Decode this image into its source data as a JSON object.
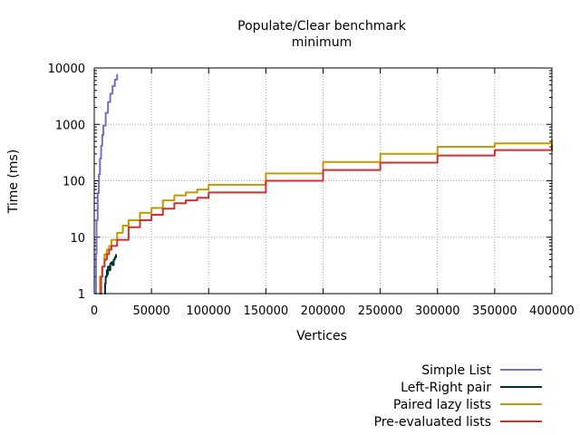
{
  "chart_data": {
    "type": "line",
    "title": "Populate/Clear benchmark",
    "subtitle": "minimum",
    "xlabel": "Vertices",
    "ylabel": "Time (ms)",
    "xlim": [
      0,
      400000
    ],
    "ylim": [
      1,
      10000
    ],
    "y_scale": "log",
    "grid": true,
    "legend_position": "bottom-right",
    "x_ticks": [
      0,
      50000,
      100000,
      150000,
      200000,
      250000,
      300000,
      350000,
      400000
    ],
    "x_tick_labels": [
      "0",
      "50000",
      "100000",
      "150000",
      "200000",
      "250000",
      "300000",
      "350000",
      "400000"
    ],
    "y_ticks": [
      1,
      10,
      100,
      1000,
      10000
    ],
    "y_tick_labels": [
      "1",
      "10",
      "100",
      "1000",
      "10000"
    ],
    "series": [
      {
        "name": "Simple List",
        "color": "#7070c8",
        "points": [
          [
            1000,
            1
          ],
          [
            1500,
            5
          ],
          [
            2000,
            20
          ],
          [
            3000,
            60
          ],
          [
            4000,
            130
          ],
          [
            5000,
            250
          ],
          [
            6000,
            420
          ],
          [
            7000,
            650
          ],
          [
            8000,
            950
          ],
          [
            10000,
            1600
          ],
          [
            12000,
            2500
          ],
          [
            14000,
            3500
          ],
          [
            16000,
            4800
          ],
          [
            18000,
            6200
          ],
          [
            20000,
            7800
          ]
        ]
      },
      {
        "name": "Left-Right pair",
        "color": "#003030",
        "points": [
          [
            9000,
            1
          ],
          [
            9500,
            1.5
          ],
          [
            10000,
            2
          ],
          [
            11000,
            2.6
          ],
          [
            11500,
            2.2
          ],
          [
            12000,
            3
          ],
          [
            13000,
            2.6
          ],
          [
            14000,
            3.4
          ],
          [
            15000,
            3.6
          ],
          [
            16000,
            3.2
          ],
          [
            17000,
            4
          ],
          [
            18000,
            4.4
          ],
          [
            19000,
            5
          ]
        ]
      },
      {
        "name": "Paired lazy lists",
        "color": "#c09a00",
        "points": [
          [
            4000,
            1
          ],
          [
            5000,
            2
          ],
          [
            7000,
            3
          ],
          [
            9000,
            5
          ],
          [
            11000,
            6
          ],
          [
            13000,
            7
          ],
          [
            15000,
            9
          ],
          [
            20000,
            12
          ],
          [
            25000,
            16
          ],
          [
            30000,
            20
          ],
          [
            40000,
            27
          ],
          [
            50000,
            33
          ],
          [
            60000,
            45
          ],
          [
            70000,
            55
          ],
          [
            80000,
            62
          ],
          [
            90000,
            70
          ],
          [
            100000,
            85
          ],
          [
            150000,
            135
          ],
          [
            200000,
            215
          ],
          [
            250000,
            300
          ],
          [
            300000,
            400
          ],
          [
            350000,
            460
          ],
          [
            400000,
            540
          ]
        ]
      },
      {
        "name": "Pre-evaluated lists",
        "color": "#d03030",
        "points": [
          [
            5000,
            1
          ],
          [
            6000,
            2
          ],
          [
            7000,
            3
          ],
          [
            9000,
            4
          ],
          [
            11000,
            5
          ],
          [
            13000,
            6
          ],
          [
            15000,
            7
          ],
          [
            20000,
            9
          ],
          [
            30000,
            15
          ],
          [
            40000,
            20
          ],
          [
            50000,
            25
          ],
          [
            60000,
            32
          ],
          [
            70000,
            40
          ],
          [
            80000,
            45
          ],
          [
            90000,
            50
          ],
          [
            100000,
            62
          ],
          [
            150000,
            100
          ],
          [
            200000,
            155
          ],
          [
            250000,
            210
          ],
          [
            300000,
            280
          ],
          [
            350000,
            350
          ],
          [
            400000,
            440
          ]
        ]
      }
    ]
  }
}
